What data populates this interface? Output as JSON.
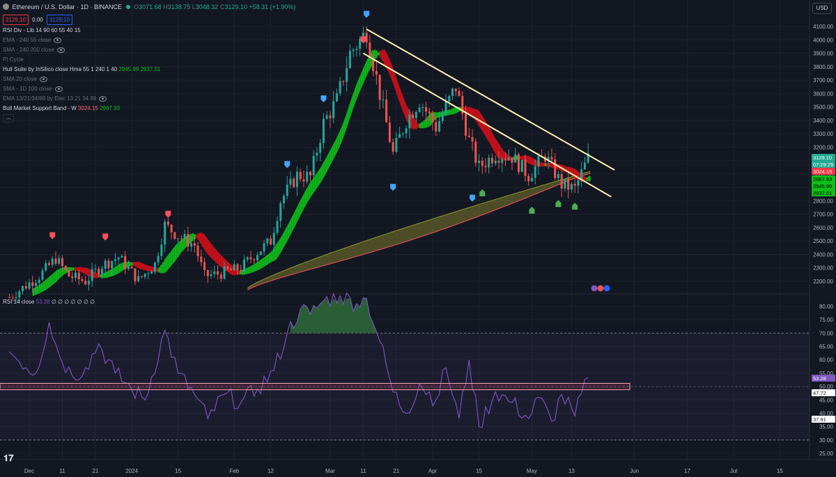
{
  "header": {
    "symbol_title": "Ethereum / U.S. Dollar · 1D · BINANCE",
    "ohlc": {
      "o_label": "O",
      "o": "3071.68",
      "h_label": "H",
      "h": "3138.75",
      "l_label": "L",
      "l": "3048.32",
      "c_label": "C",
      "c": "3129.10",
      "change": "+58.31 (+1.90%)"
    },
    "bid": "3129.10",
    "spread": "0.00",
    "ask": "3129.10",
    "currency": "USD"
  },
  "indicators": [
    {
      "label": "RSI Div - Lib 14 90 60 55 40 15",
      "values": [],
      "dim": false,
      "eye": false
    },
    {
      "label": "EMA - 240 55 close",
      "values": [],
      "dim": true,
      "eye": true
    },
    {
      "label": "SMA - 240 200 close",
      "values": [],
      "dim": true,
      "eye": true
    },
    {
      "label": "PI Cycle",
      "values": [],
      "dim": true,
      "eye": false
    },
    {
      "label": "Hull Suite by InSilico close Hma 55 1 240 1 40",
      "values": [
        "2945.99",
        "2937.01"
      ],
      "dim": false,
      "eye": false
    },
    {
      "label": "SMA 20 close",
      "values": [],
      "dim": true,
      "eye": true
    },
    {
      "label": "SMA - 1D 100 close",
      "values": [],
      "dim": true,
      "eye": true
    },
    {
      "label": "EMA 13/21/34/89 by Elec 13 21 34 89",
      "values": [],
      "dim": true,
      "eye": true
    },
    {
      "label": "Bull Market Support Band - W",
      "values": [
        "3024.15",
        "2967.93"
      ],
      "dim": false,
      "eye": false
    }
  ],
  "collapse_icon": "chevron-up-icon",
  "rsi_legend": {
    "label": "RSI 14 close",
    "value": "53.28",
    "placeholders": "∅ ∅ ∅ ∅ ∅ ∅ ∅"
  },
  "price_badges": {
    "last": "3129.10",
    "countdown": "07:29:29",
    "bmsb_sma": "3024.15",
    "bmsb_ema": "2967.93",
    "hull_a": "2945.99",
    "hull_b": "2937.01"
  },
  "rsi_badges": {
    "current": "53.28",
    "level_a": "47.72",
    "level_b": "37.91"
  },
  "colors": {
    "background": "#131722",
    "grid": "#1e222d",
    "bull": "#26a69a",
    "bear": "#ef5350",
    "hull_up": "#0fbf1a",
    "hull_down": "#d40f1a",
    "trendline": "#fff3b0",
    "rsi_line": "#7e57c2",
    "band_fill": "#6b6a2a",
    "band_edge": "#f7525f",
    "up_arrow": "#42a5f5",
    "down_arrow": "#f7525f",
    "green_marker": "#4caf50"
  },
  "chart_data": [
    {
      "type": "candlestick",
      "title": "Ethereum / U.S. Dollar · 1D · BINANCE",
      "y_axis_ticks": [
        4100,
        4000,
        3900,
        3800,
        3700,
        3600,
        3500,
        3400,
        3300,
        3200,
        3100,
        3000,
        2900,
        2800,
        2700,
        2600,
        2500,
        2400,
        2300,
        2200
      ],
      "ylim": [
        2150,
        4150
      ],
      "x_axis_ticks": [
        "Dec",
        "11",
        "21",
        "2024",
        "15",
        "Feb",
        "12",
        "Mar",
        "11",
        "21",
        "Apr",
        "15",
        "May",
        "13",
        "Jun",
        "17",
        "Jul",
        "15"
      ],
      "x_tick_dates": [
        "2023-12-01",
        "2023-12-11",
        "2023-12-21",
        "2024-01-01",
        "2024-01-15",
        "2024-02-01",
        "2024-02-12",
        "2024-03-01",
        "2024-03-11",
        "2024-03-21",
        "2024-04-01",
        "2024-04-15",
        "2024-05-01",
        "2024-05-13",
        "2024-06-01",
        "2024-06-17",
        "2024-07-01",
        "2024-07-15"
      ],
      "close_path": [
        [
          "2023-11-25",
          2080
        ],
        [
          "2023-12-04",
          2240
        ],
        [
          "2023-12-09",
          2370
        ],
        [
          "2023-12-13",
          2240
        ],
        [
          "2023-12-18",
          2200
        ],
        [
          "2023-12-23",
          2320
        ],
        [
          "2023-12-28",
          2380
        ],
        [
          "2024-01-03",
          2210
        ],
        [
          "2024-01-08",
          2330
        ],
        [
          "2024-01-11",
          2620
        ],
        [
          "2024-01-15",
          2540
        ],
        [
          "2024-01-20",
          2470
        ],
        [
          "2024-01-23",
          2240
        ],
        [
          "2024-01-28",
          2260
        ],
        [
          "2024-02-03",
          2300
        ],
        [
          "2024-02-08",
          2420
        ],
        [
          "2024-02-12",
          2500
        ],
        [
          "2024-02-15",
          2800
        ],
        [
          "2024-02-20",
          2990
        ],
        [
          "2024-02-24",
          2980
        ],
        [
          "2024-02-28",
          3380
        ],
        [
          "2024-03-03",
          3550
        ],
        [
          "2024-03-07",
          3900
        ],
        [
          "2024-03-12",
          4060
        ],
        [
          "2024-03-16",
          3600
        ],
        [
          "2024-03-20",
          3150
        ],
        [
          "2024-03-24",
          3400
        ],
        [
          "2024-03-28",
          3550
        ],
        [
          "2024-04-02",
          3350
        ],
        [
          "2024-04-08",
          3650
        ],
        [
          "2024-04-12",
          3250
        ],
        [
          "2024-04-15",
          3050
        ],
        [
          "2024-04-20",
          3150
        ],
        [
          "2024-04-25",
          3130
        ],
        [
          "2024-04-30",
          2990
        ],
        [
          "2024-05-05",
          3140
        ],
        [
          "2024-05-10",
          2920
        ],
        [
          "2024-05-14",
          2890
        ],
        [
          "2024-05-18",
          3120
        ]
      ],
      "series": [
        {
          "name": "Hull Suite by InSilico",
          "kind": "hull_band",
          "current": [
            2945.99,
            2937.01
          ]
        },
        {
          "name": "Bull Market Support Band - W",
          "kind": "band",
          "current": [
            3024.15,
            2967.93
          ]
        }
      ],
      "trendlines": [
        {
          "from": [
            "2024-03-12",
            4080
          ],
          "to": [
            "2024-05-26",
            3030
          ]
        },
        {
          "from": [
            "2024-03-11",
            3900
          ],
          "to": [
            "2024-05-25",
            2830
          ]
        }
      ],
      "markers": [
        {
          "date": "2023-12-08",
          "price": 2540,
          "kind": "down"
        },
        {
          "date": "2023-12-24",
          "price": 2530,
          "kind": "down"
        },
        {
          "date": "2024-01-12",
          "price": 2700,
          "kind": "down"
        },
        {
          "date": "2024-02-17",
          "price": 3070,
          "kind": "up"
        },
        {
          "date": "2024-02-28",
          "price": 3560,
          "kind": "up"
        },
        {
          "date": "2024-03-12",
          "price": 4190,
          "kind": "up"
        },
        {
          "date": "2024-03-11",
          "price": 4000,
          "kind": "down"
        },
        {
          "date": "2024-03-20",
          "price": 2900,
          "kind": "up"
        },
        {
          "date": "2024-04-13",
          "price": 2820,
          "kind": "up"
        },
        {
          "date": "2024-04-16",
          "price": 2860,
          "kind": "green"
        },
        {
          "date": "2024-05-01",
          "price": 2730,
          "kind": "green"
        },
        {
          "date": "2024-05-09",
          "price": 2780,
          "kind": "green"
        },
        {
          "date": "2024-05-14",
          "price": 2760,
          "kind": "green"
        }
      ]
    },
    {
      "type": "line",
      "title": "RSI 14 close",
      "y_axis_ticks": [
        80,
        75,
        70,
        65,
        60,
        55,
        50,
        45,
        40,
        35,
        30,
        25
      ],
      "ylim": [
        23,
        83
      ],
      "levels": {
        "upper": 70,
        "middle": 50,
        "lower": 30
      },
      "x": [
        "2023-11-25",
        "2023-12-03",
        "2023-12-07",
        "2023-12-10",
        "2023-12-14",
        "2023-12-18",
        "2023-12-22",
        "2023-12-27",
        "2024-01-01",
        "2024-01-05",
        "2024-01-11",
        "2024-01-15",
        "2024-01-20",
        "2024-01-24",
        "2024-01-29",
        "2024-02-03",
        "2024-02-08",
        "2024-02-13",
        "2024-02-17",
        "2024-02-21",
        "2024-02-24",
        "2024-02-28",
        "2024-03-04",
        "2024-03-09",
        "2024-03-12",
        "2024-03-16",
        "2024-03-20",
        "2024-03-24",
        "2024-03-28",
        "2024-04-02",
        "2024-04-05",
        "2024-04-09",
        "2024-04-12",
        "2024-04-15",
        "2024-04-20",
        "2024-04-25",
        "2024-04-30",
        "2024-05-03",
        "2024-05-07",
        "2024-05-10",
        "2024-05-14",
        "2024-05-18"
      ],
      "series": [
        {
          "values": [
            63,
            55,
            74,
            62,
            54,
            57,
            66,
            55,
            49,
            45,
            71,
            55,
            47,
            38,
            47,
            44,
            49,
            56,
            70,
            79,
            77,
            82,
            84,
            81,
            83,
            67,
            48,
            40,
            51,
            45,
            57,
            38,
            60,
            35,
            48,
            44,
            38,
            46,
            37,
            47,
            39,
            53.28
          ]
        }
      ]
    }
  ]
}
